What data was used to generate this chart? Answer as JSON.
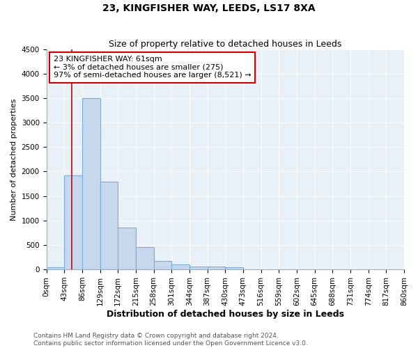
{
  "title": "23, KINGFISHER WAY, LEEDS, LS17 8XA",
  "subtitle": "Size of property relative to detached houses in Leeds",
  "xlabel": "Distribution of detached houses by size in Leeds",
  "ylabel": "Number of detached properties",
  "bar_values": [
    40,
    1920,
    3500,
    1790,
    850,
    460,
    165,
    95,
    65,
    55,
    45,
    0,
    0,
    0,
    0,
    0,
    0,
    0,
    0,
    0
  ],
  "bin_edges": [
    0,
    43,
    86,
    129,
    172,
    215,
    258,
    301,
    344,
    387,
    430,
    473,
    516,
    559,
    602,
    645,
    688,
    731,
    774,
    817,
    860
  ],
  "x_tick_labels": [
    "0sqm",
    "43sqm",
    "86sqm",
    "129sqm",
    "172sqm",
    "215sqm",
    "258sqm",
    "301sqm",
    "344sqm",
    "387sqm",
    "430sqm",
    "473sqm",
    "516sqm",
    "559sqm",
    "602sqm",
    "645sqm",
    "688sqm",
    "731sqm",
    "774sqm",
    "817sqm",
    "860sqm"
  ],
  "ylim": [
    0,
    4500
  ],
  "bar_color": "#c5d8ed",
  "bar_edge_color": "#7aadd4",
  "axes_bg_color": "#e8f0f8",
  "fig_bg_color": "#ffffff",
  "grid_color": "#ffffff",
  "vline_x": 61,
  "vline_color": "#cc0000",
  "annotation_line1": "23 KINGFISHER WAY: 61sqm",
  "annotation_line2": "← 3% of detached houses are smaller (275)",
  "annotation_line3": "97% of semi-detached houses are larger (8,521) →",
  "annotation_box_color": "#cc0000",
  "footer_line1": "Contains HM Land Registry data © Crown copyright and database right 2024.",
  "footer_line2": "Contains public sector information licensed under the Open Government Licence v3.0.",
  "title_fontsize": 10,
  "subtitle_fontsize": 9,
  "xlabel_fontsize": 9,
  "ylabel_fontsize": 8,
  "tick_fontsize": 7.5,
  "annotation_fontsize": 8,
  "footer_fontsize": 6.5
}
